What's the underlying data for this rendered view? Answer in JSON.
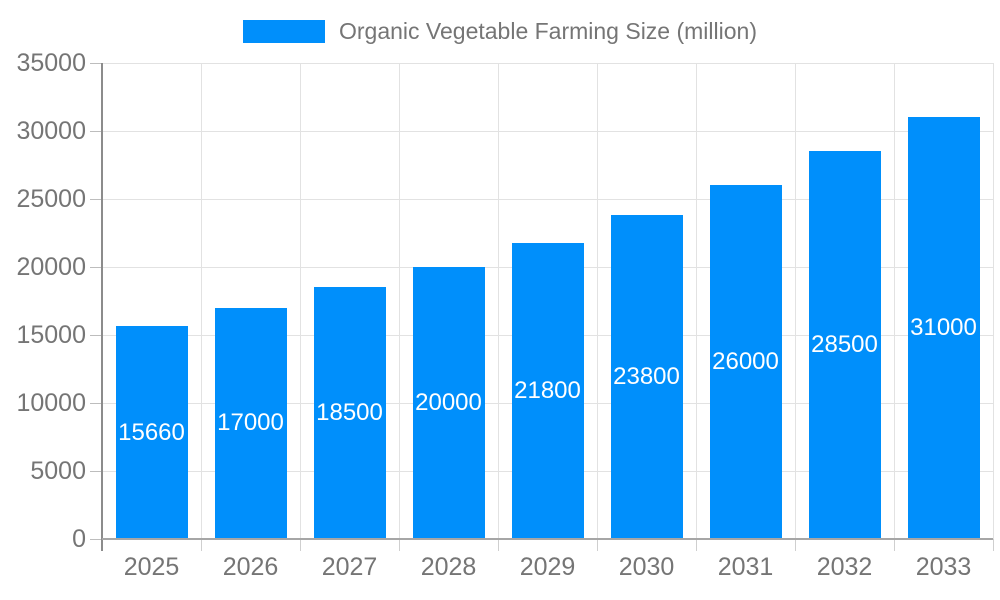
{
  "chart_data": {
    "type": "bar",
    "title": "Organic Vegetable Farming Size (million)",
    "series": [
      {
        "name": "Organic Vegetable Farming Size (million)",
        "values": [
          15660,
          17000,
          18500,
          20000,
          21800,
          23800,
          26000,
          28500,
          31000
        ]
      }
    ],
    "categories": [
      "2025",
      "2026",
      "2027",
      "2028",
      "2029",
      "2030",
      "2031",
      "2032",
      "2033"
    ],
    "data_labels": [
      "15660",
      "17000",
      "18500",
      "20000",
      "21800",
      "23800",
      "26000",
      "28500",
      "31000"
    ],
    "xlabel": "",
    "ylabel": "",
    "ylim": [
      0,
      35000
    ],
    "ytick_step": 5000,
    "yticks": [
      0,
      5000,
      10000,
      15000,
      20000,
      25000,
      30000,
      35000
    ],
    "ytick_labels": [
      "0",
      "5000",
      "10000",
      "15000",
      "20000",
      "25000",
      "30000",
      "35000"
    ],
    "grid": true,
    "legend_position": "top",
    "colors": {
      "bar": "#008FFB",
      "bar_value_text": "#ffffff",
      "axis_text": "#757575",
      "gridline": "#e2e2e2",
      "y_axis_line": "#8c8c8c",
      "x_axis_line": "#a6a6a6"
    }
  },
  "legend": {
    "label": "Organic Vegetable Farming Size (million)"
  }
}
